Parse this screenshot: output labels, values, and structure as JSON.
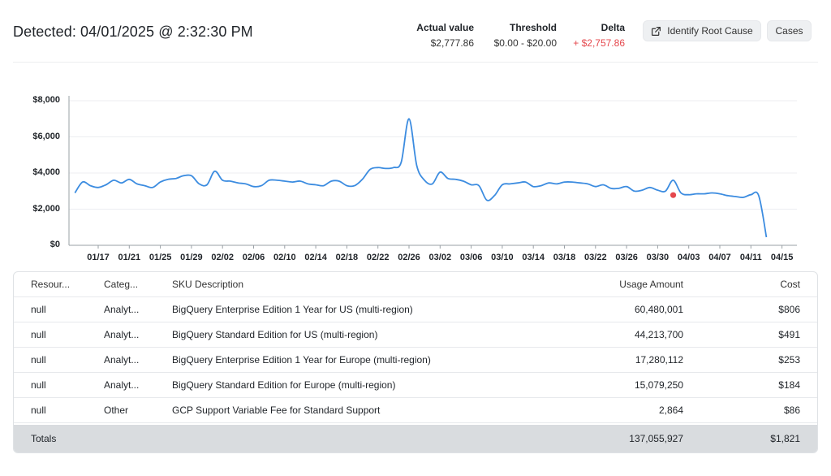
{
  "header": {
    "title": "Detected: 04/01/2025 @ 2:32:30 PM",
    "metrics": {
      "actual": {
        "label": "Actual value",
        "value": "$2,777.86"
      },
      "threshold": {
        "label": "Threshold",
        "value": "$0.00 - $20.00"
      },
      "delta": {
        "label": "Delta",
        "value": "+ $2,757.86"
      }
    },
    "buttons": {
      "root_cause": "Identify Root Cause",
      "cases": "Cases"
    }
  },
  "colors": {
    "line": "#3c8ce0",
    "anomaly": "#e5484d",
    "delta": "#e5484d",
    "totals_bg": "#d9dcdf"
  },
  "chart_data": {
    "type": "line",
    "ylim": [
      0,
      8000
    ],
    "y_ticks": [
      "$8,000",
      "$6,000",
      "$4,000",
      "$2,000",
      "$0"
    ],
    "x_ticks": [
      "01/17",
      "01/21",
      "01/25",
      "01/29",
      "02/02",
      "02/06",
      "02/10",
      "02/14",
      "02/18",
      "02/22",
      "02/26",
      "03/02",
      "03/06",
      "03/10",
      "03/14",
      "03/18",
      "03/22",
      "03/26",
      "03/30",
      "04/03",
      "04/07",
      "04/11",
      "04/15"
    ],
    "x_start": "01/14",
    "series": [
      {
        "values": [
          2900,
          3500,
          3300,
          3200,
          3350,
          3600,
          3450,
          3650,
          3400,
          3300,
          3200,
          3500,
          3650,
          3700,
          3850,
          3850,
          3400,
          3350,
          4100,
          3600,
          3550,
          3450,
          3400,
          3250,
          3300,
          3600,
          3600,
          3550,
          3500,
          3550,
          3400,
          3350,
          3300,
          3550,
          3550,
          3300,
          3300,
          3650,
          4200,
          4300,
          4250,
          4300,
          4600,
          7000,
          4400,
          3600,
          3400,
          4050,
          3700,
          3650,
          3550,
          3350,
          3300,
          2500,
          2750,
          3350,
          3400,
          3450,
          3500,
          3250,
          3300,
          3450,
          3400,
          3500,
          3500,
          3450,
          3400,
          3250,
          3350,
          3150,
          3150,
          3250,
          3000,
          3050,
          3200,
          3050,
          3000,
          3600,
          2900,
          2800,
          2850,
          2850,
          2900,
          2850,
          2750,
          2700,
          2650,
          2800,
          2750,
          450
        ],
        "anomaly": {
          "date": "04/01",
          "value": 2777.86
        }
      }
    ]
  },
  "table": {
    "columns": [
      "Resour...",
      "Categ...",
      "SKU Description",
      "Usage Amount",
      "Cost"
    ],
    "rows": [
      [
        "null",
        "Analyt...",
        "BigQuery Enterprise Edition 1 Year for US (multi-region)",
        "60,480,001",
        "$806"
      ],
      [
        "null",
        "Analyt...",
        "BigQuery Standard Edition for US (multi-region)",
        "44,213,700",
        "$491"
      ],
      [
        "null",
        "Analyt...",
        "BigQuery Enterprise Edition 1 Year for Europe (multi-region)",
        "17,280,112",
        "$253"
      ],
      [
        "null",
        "Analyt...",
        "BigQuery Standard Edition for Europe (multi-region)",
        "15,079,250",
        "$184"
      ],
      [
        "null",
        "Other",
        "GCP Support Variable Fee for Standard Support",
        "2,864",
        "$86"
      ]
    ],
    "totals": {
      "label": "Totals",
      "usage": "137,055,927",
      "cost": "$1,821"
    }
  }
}
